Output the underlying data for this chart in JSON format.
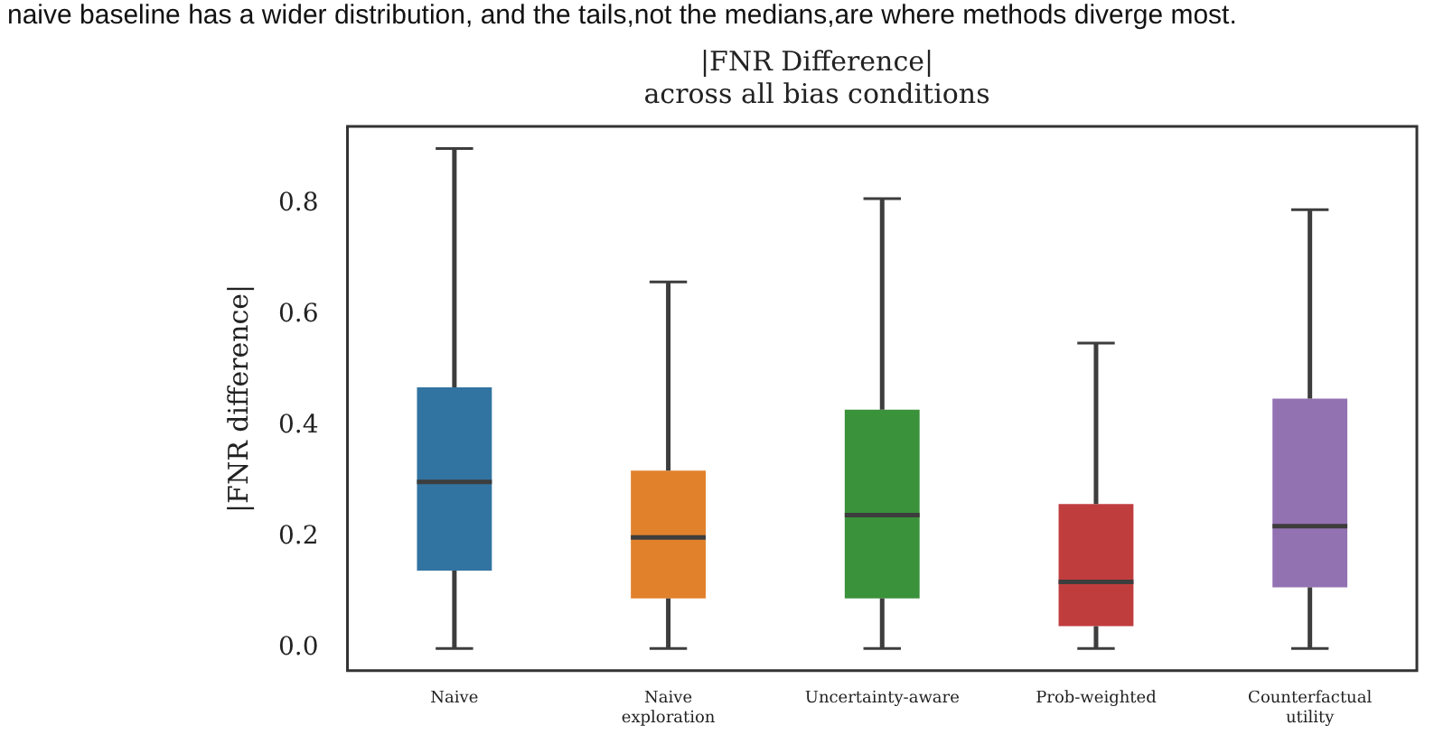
{
  "chart_data": {
    "type": "box",
    "title": "|FNR Difference|\nacross all bias conditions",
    "ylabel": "|FNR difference|",
    "categories": [
      "Naive",
      "Naive exploration",
      "Uncertainty-aware",
      "Prob-weighted",
      "Counterfactual utility"
    ],
    "colors": [
      "#3274a1",
      "#e1812c",
      "#3a923a",
      "#c03d3e",
      "#9372b2"
    ],
    "boxes": [
      {
        "low": 0.0,
        "q1": 0.14,
        "median": 0.3,
        "q3": 0.47,
        "high": 0.9
      },
      {
        "low": 0.0,
        "q1": 0.09,
        "median": 0.2,
        "q3": 0.32,
        "high": 0.66
      },
      {
        "low": 0.0,
        "q1": 0.09,
        "median": 0.24,
        "q3": 0.43,
        "high": 0.81
      },
      {
        "low": 0.0,
        "q1": 0.04,
        "median": 0.12,
        "q3": 0.26,
        "high": 0.55
      },
      {
        "low": 0.0,
        "q1": 0.11,
        "median": 0.22,
        "q3": 0.45,
        "high": 0.79
      }
    ],
    "ylim": [
      -0.04,
      0.94
    ],
    "yticks": [
      {
        "value": 0,
        "label": "0.0"
      },
      {
        "value": 0.2,
        "label": "0.2"
      },
      {
        "value": 0.4,
        "label": "0.4"
      },
      {
        "value": 0.6,
        "label": "0.6"
      },
      {
        "value": 0.8,
        "label": "0.8"
      }
    ],
    "grid": false,
    "legend": false,
    "annotations": [
      "naive baseline has a wider distribution, and the tails,not the medians,are where methods diverge most."
    ]
  }
}
